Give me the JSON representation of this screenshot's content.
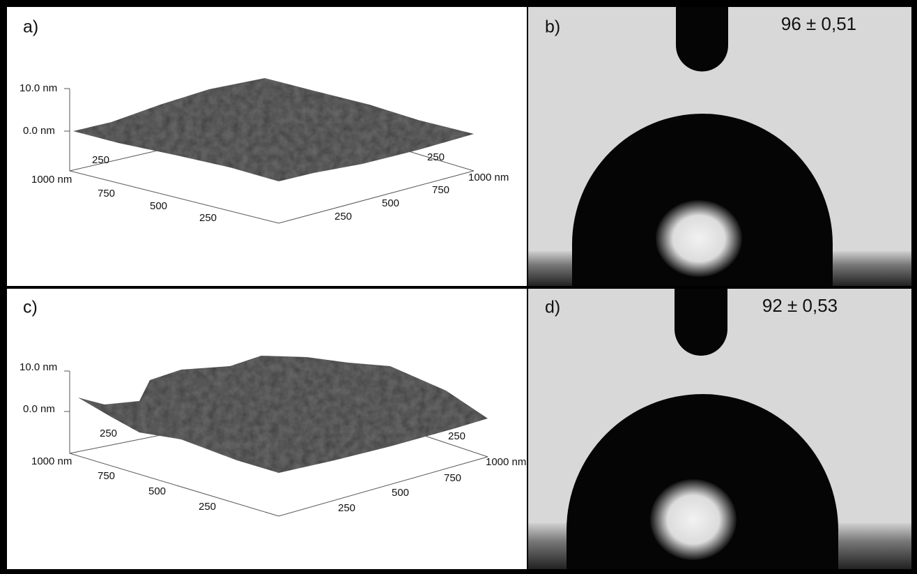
{
  "panels": [
    {
      "label": "a)",
      "z_labels": [
        "10.0 nm",
        "0.0 nm"
      ],
      "left_axis": [
        "1000 nm",
        "750",
        "500",
        "250"
      ],
      "right_axis": [
        "250",
        "500",
        "750",
        "1000 nm"
      ],
      "back_left": "250",
      "back_right": "250"
    },
    {
      "label": "b)",
      "angle": "96 ± 0,51"
    },
    {
      "label": "c)",
      "z_labels": [
        "10.0 nm",
        "0.0 nm"
      ],
      "left_axis": [
        "1000 nm",
        "750",
        "500",
        "250"
      ],
      "right_axis": [
        "250",
        "500",
        "750",
        "1000 nm"
      ],
      "back_left": "250",
      "back_right": "250"
    },
    {
      "label": "d)",
      "angle": "92 ± 0,53"
    }
  ]
}
